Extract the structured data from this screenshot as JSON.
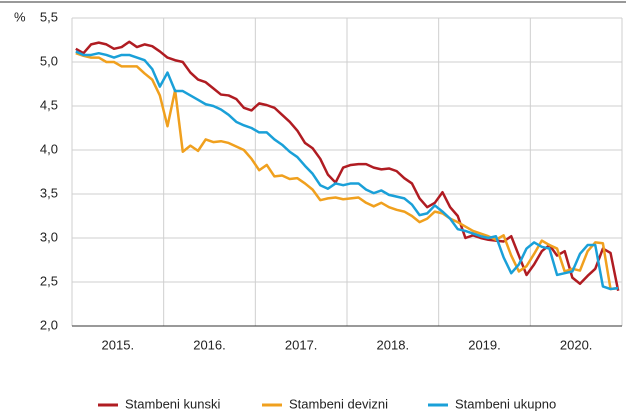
{
  "chart_data": {
    "type": "line",
    "y_axis_label": "%",
    "categories": [
      null,
      null,
      null,
      null,
      null,
      null,
      "2015.",
      null,
      null,
      null,
      null,
      null,
      null,
      null,
      null,
      null,
      null,
      null,
      "2016.",
      null,
      null,
      null,
      null,
      null,
      null,
      null,
      null,
      null,
      null,
      null,
      "2017.",
      null,
      null,
      null,
      null,
      null,
      null,
      null,
      null,
      null,
      null,
      null,
      "2018.",
      null,
      null,
      null,
      null,
      null,
      null,
      null,
      null,
      null,
      null,
      null,
      "2019.",
      null,
      null,
      null,
      null,
      null,
      null,
      null,
      null,
      null,
      null,
      null,
      "2020.",
      null,
      null,
      null,
      null,
      null
    ],
    "series": [
      {
        "name": "Stambeni kunski",
        "color": "#b01c22",
        "values": [
          5.15,
          5.1,
          5.2,
          5.22,
          5.2,
          5.15,
          5.17,
          5.23,
          5.17,
          5.2,
          5.18,
          5.12,
          5.05,
          5.02,
          5.0,
          4.88,
          4.8,
          4.77,
          4.7,
          4.63,
          4.62,
          4.58,
          4.48,
          4.45,
          4.53,
          4.51,
          4.48,
          4.4,
          4.32,
          4.22,
          4.08,
          4.02,
          3.9,
          3.72,
          3.63,
          3.8,
          3.83,
          3.84,
          3.84,
          3.8,
          3.78,
          3.79,
          3.76,
          3.68,
          3.62,
          3.45,
          3.35,
          3.4,
          3.52,
          3.35,
          3.25,
          3.0,
          3.03,
          3.0,
          2.98,
          2.97,
          2.96,
          3.02,
          2.8,
          2.58,
          2.7,
          2.85,
          2.92,
          2.8,
          2.85,
          2.55,
          2.48,
          2.57,
          2.65,
          2.88,
          2.83,
          2.4
        ]
      },
      {
        "name": "Stambeni devizni",
        "color": "#f0a01e",
        "values": [
          5.1,
          5.07,
          5.05,
          5.05,
          5.0,
          5.0,
          4.95,
          4.95,
          4.95,
          4.87,
          4.8,
          4.62,
          4.27,
          4.68,
          3.98,
          4.05,
          3.99,
          4.12,
          4.09,
          4.1,
          4.08,
          4.04,
          4.0,
          3.9,
          3.77,
          3.83,
          3.7,
          3.71,
          3.67,
          3.68,
          3.62,
          3.55,
          3.43,
          3.45,
          3.46,
          3.44,
          3.45,
          3.46,
          3.4,
          3.36,
          3.4,
          3.35,
          3.32,
          3.3,
          3.25,
          3.18,
          3.22,
          3.3,
          3.28,
          3.22,
          3.18,
          3.13,
          3.08,
          3.05,
          3.02,
          2.98,
          3.03,
          2.8,
          2.62,
          2.68,
          2.82,
          2.97,
          2.92,
          2.88,
          2.62,
          2.65,
          2.63,
          2.85,
          2.95,
          2.94,
          2.42,
          2.43
        ]
      },
      {
        "name": "Stambeni ukupno",
        "color": "#1aa0d8",
        "values": [
          5.12,
          5.08,
          5.08,
          5.1,
          5.08,
          5.05,
          5.08,
          5.08,
          5.05,
          5.02,
          4.92,
          4.72,
          4.88,
          4.67,
          4.67,
          4.62,
          4.57,
          4.52,
          4.5,
          4.46,
          4.4,
          4.32,
          4.28,
          4.25,
          4.2,
          4.2,
          4.12,
          4.06,
          3.98,
          3.92,
          3.82,
          3.73,
          3.6,
          3.56,
          3.62,
          3.6,
          3.62,
          3.62,
          3.55,
          3.51,
          3.54,
          3.49,
          3.47,
          3.45,
          3.38,
          3.26,
          3.28,
          3.37,
          3.3,
          3.22,
          3.1,
          3.08,
          3.05,
          3.02,
          3.0,
          3.02,
          2.78,
          2.6,
          2.7,
          2.88,
          2.95,
          2.9,
          2.88,
          2.58,
          2.6,
          2.62,
          2.82,
          2.92,
          2.92,
          2.45,
          2.42,
          2.43
        ]
      }
    ],
    "ylim": [
      2.0,
      5.5
    ],
    "yticks": [
      {
        "value": 2.0,
        "label": "2,0"
      },
      {
        "value": 2.5,
        "label": "2,5"
      },
      {
        "value": 3.0,
        "label": "3,0"
      },
      {
        "value": 3.5,
        "label": "3,5"
      },
      {
        "value": 4.0,
        "label": "4,0"
      },
      {
        "value": 4.5,
        "label": "4,5"
      },
      {
        "value": 5.0,
        "label": "5,0"
      },
      {
        "value": 5.5,
        "label": "5,5"
      }
    ],
    "grid": true,
    "legend": "bottom"
  }
}
